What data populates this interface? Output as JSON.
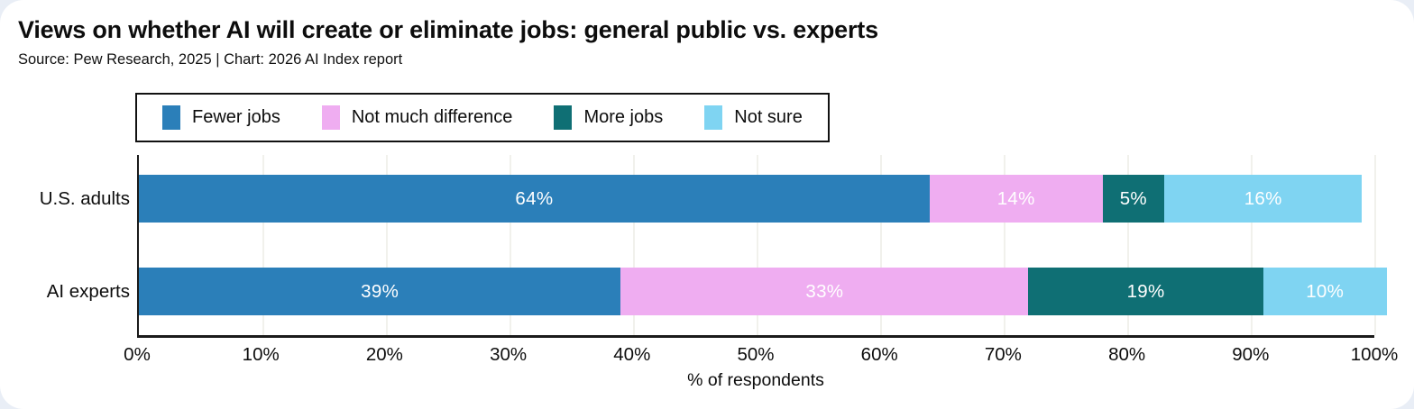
{
  "header": {
    "title": "Views on whether AI will create or eliminate jobs: general public vs. experts",
    "subtitle": "Source: Pew Research, 2025 | Chart: 2026 AI Index report"
  },
  "colors": {
    "fewer_jobs": "#2b7fb9",
    "not_much_difference": "#efadf1",
    "more_jobs": "#0f6f74",
    "not_sure": "#7fd4f2",
    "axis": "#1a1a1a",
    "gridline": "#f1f1ec"
  },
  "chart_data": {
    "type": "bar",
    "orientation": "horizontal",
    "stacked": true,
    "title": "Views on whether AI will create or eliminate jobs: general public vs. experts",
    "categories": [
      "U.S. adults",
      "AI experts"
    ],
    "series": [
      {
        "name": "Fewer jobs",
        "color": "#2b7fb9",
        "values": [
          64,
          39
        ]
      },
      {
        "name": "Not much difference",
        "color": "#efadf1",
        "values": [
          14,
          33
        ]
      },
      {
        "name": "More jobs",
        "color": "#0f6f74",
        "values": [
          5,
          19
        ]
      },
      {
        "name": "Not sure",
        "color": "#7fd4f2",
        "values": [
          16,
          10
        ]
      }
    ],
    "value_suffix": "%",
    "xlabel": "% of respondents",
    "xlim": [
      0,
      100
    ],
    "x_tick_labels": [
      "0%",
      "10%",
      "20%",
      "30%",
      "40%",
      "50%",
      "60%",
      "70%",
      "80%",
      "90%",
      "100%"
    ],
    "grid": "vertical",
    "legend_position": "top"
  }
}
